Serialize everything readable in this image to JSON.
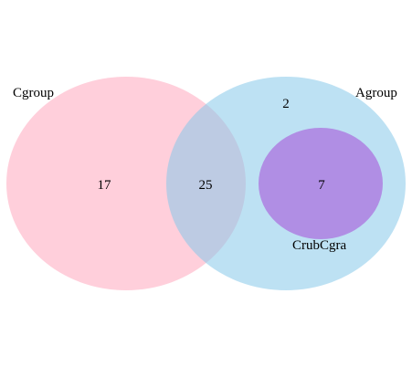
{
  "sets": [
    {
      "id": "cgroup",
      "label": "Cgroup",
      "color": "#ffb6c8",
      "opacity": 0.65
    },
    {
      "id": "agroup",
      "label": "Agroup",
      "color": "#87c8ea",
      "opacity": 0.55
    },
    {
      "id": "crubcgra",
      "label": "CrubCgra",
      "color": "#b08ee4",
      "opacity": 1.0
    }
  ],
  "regions": {
    "cgroup_only": "17",
    "cgroup_and_agroup": "25",
    "agroup_only": "2",
    "crubcgra": "7"
  }
}
